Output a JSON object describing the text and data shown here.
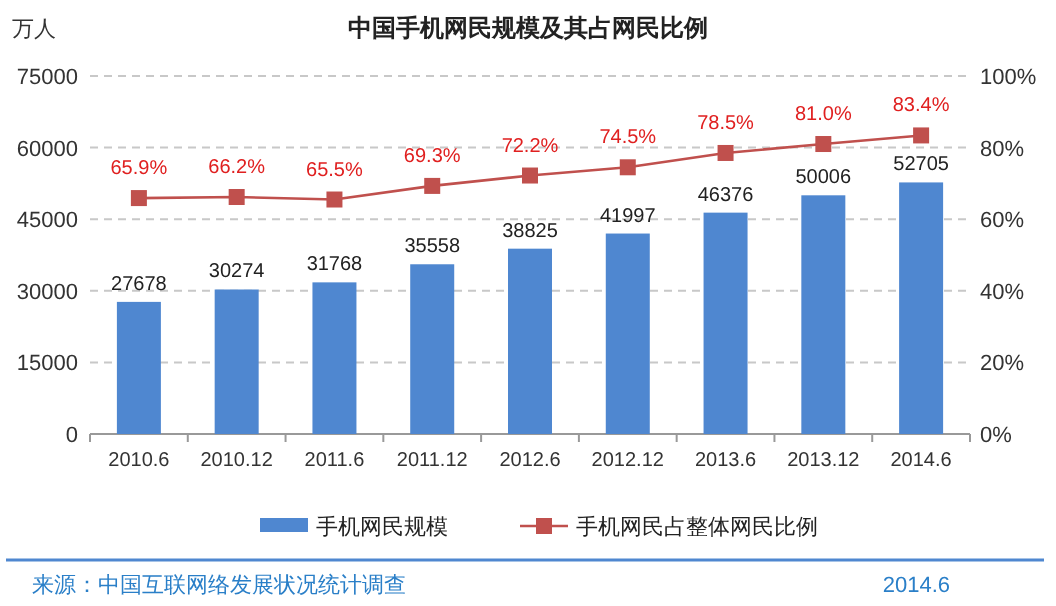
{
  "chart_data": {
    "type": "bar",
    "title": "中国手机网民规模及其占网民比例",
    "ylabel": "万人",
    "categories": [
      "2010.6",
      "2010.12",
      "2011.6",
      "2011.12",
      "2012.6",
      "2012.12",
      "2013.6",
      "2013.12",
      "2014.6"
    ],
    "series": [
      {
        "name": "手机网民规模",
        "color": "#4f87d0",
        "values": [
          27678,
          30274,
          31768,
          35558,
          38825,
          41997,
          46376,
          50006,
          52705
        ]
      },
      {
        "name": "手机网民占整体网民比例",
        "type": "line",
        "axis": "y2",
        "color": "#c0504d",
        "marker": "square",
        "values": [
          65.9,
          66.2,
          65.5,
          69.3,
          72.2,
          74.5,
          78.5,
          81.0,
          83.4
        ],
        "value_labels": [
          "65.9%",
          "66.2%",
          "65.5%",
          "69.3%",
          "72.2%",
          "74.5%",
          "78.5%",
          "81.0%",
          "83.4%"
        ]
      }
    ],
    "ylim": [
      0,
      75000
    ],
    "yticks": [
      0,
      15000,
      30000,
      45000,
      60000,
      75000
    ],
    "y2lim": [
      0,
      100
    ],
    "y2ticks": [
      {
        "value": 0,
        "label": "0%"
      },
      {
        "value": 20,
        "label": "20%"
      },
      {
        "value": 40,
        "label": "40%"
      },
      {
        "value": 60,
        "label": "60%"
      },
      {
        "value": 80,
        "label": "80%"
      },
      {
        "value": 100,
        "label": "100%"
      }
    ],
    "data_labels": true,
    "grid": "y",
    "legend": "bottom",
    "annotations": [
      "来源：中国互联网络发展状况统计调查",
      "2014.6"
    ]
  }
}
